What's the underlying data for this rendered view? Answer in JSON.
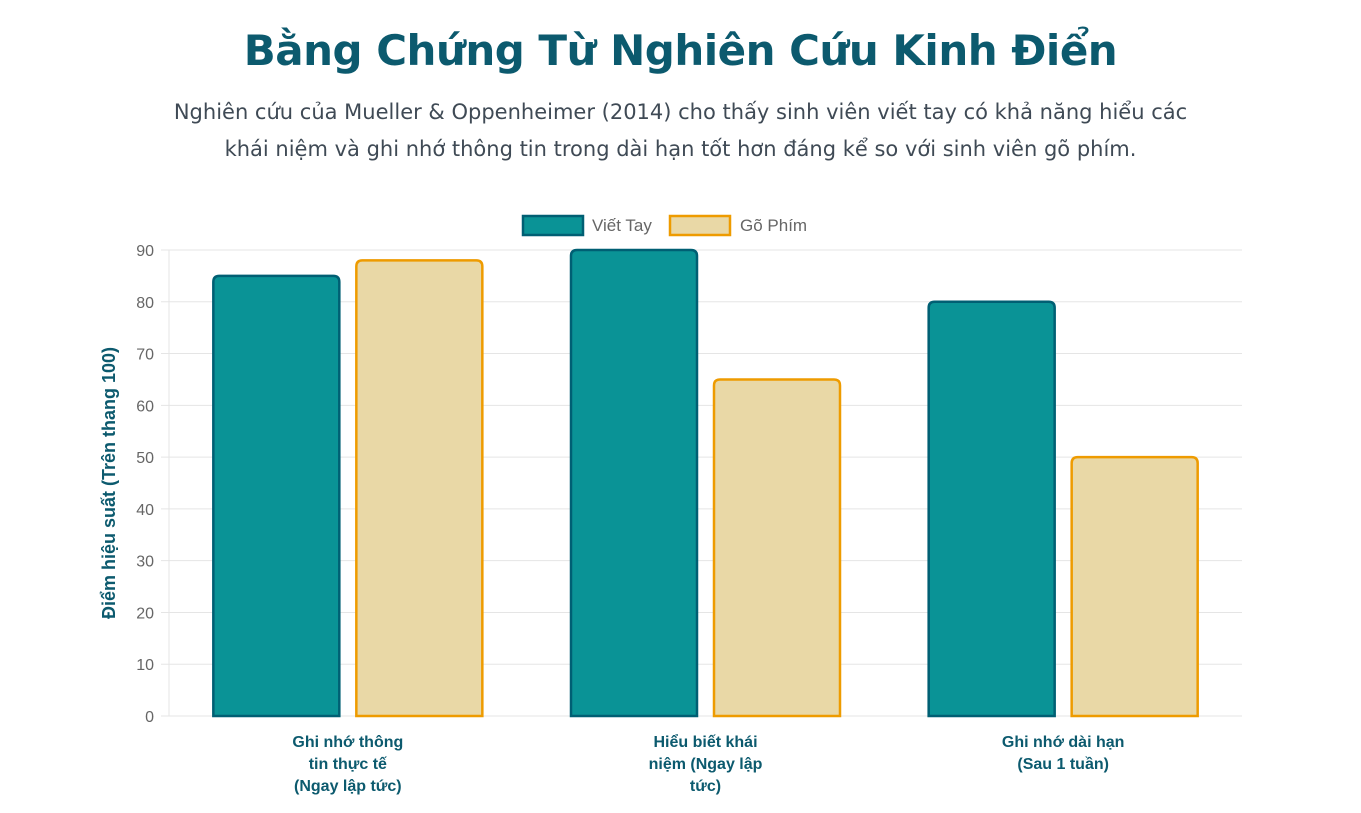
{
  "header": {
    "title": "Bằng Chứng Từ Nghiên Cứu Kinh Điển",
    "subtitle_line1": "Nghiên cứu của Mueller & Oppenheimer (2014) cho thấy sinh viên viết tay có khả năng hiểu các",
    "subtitle_line2": "khái niệm và ghi nhớ thông tin trong dài hạn tốt hơn đáng kể so với sinh viên gõ phím."
  },
  "colors": {
    "title": "#0c5a6e",
    "handwriting_fill": "#0a9396",
    "handwriting_border": "#005f73",
    "typing_fill": "#e9d8a6",
    "typing_border": "#ee9b00",
    "grid": "#e5e5e5"
  },
  "chart_data": {
    "type": "bar",
    "categories": [
      [
        "Ghi nhớ thông",
        "tin thực tế",
        "(Ngay lập tức)"
      ],
      [
        "Hiểu biết khái",
        "niệm (Ngay lập",
        "tức)"
      ],
      [
        "Ghi nhớ dài hạn",
        "(Sau 1 tuần)"
      ]
    ],
    "series": [
      {
        "name": "Viết Tay",
        "values": [
          85,
          90,
          80
        ]
      },
      {
        "name": "Gõ Phím",
        "values": [
          88,
          65,
          50
        ]
      }
    ],
    "ylabel": "Điểm hiệu suất (Trên thang 100)",
    "xlabel": "",
    "ylim": [
      0,
      90
    ],
    "yticks": [
      0,
      10,
      20,
      30,
      40,
      50,
      60,
      70,
      80,
      90
    ],
    "grid": true,
    "legend": "top-center"
  }
}
